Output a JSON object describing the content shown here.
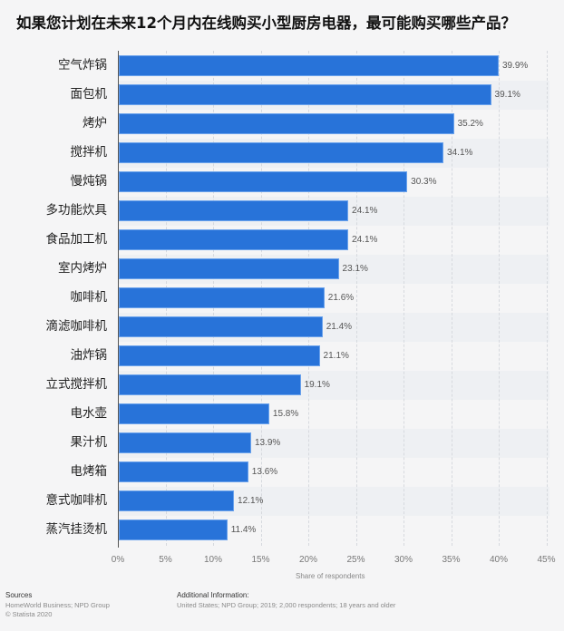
{
  "title": "如果您计划在未来12个月内在线购买小型厨房电器，最可能购买哪些产品？",
  "chart_data": {
    "type": "bar",
    "orientation": "horizontal",
    "title": "如果您计划在未来12个月内在线购买小型厨房电器，最可能购买哪些产品？",
    "xlabel": "Share of respondents",
    "ylabel": "",
    "xlim": [
      0,
      45
    ],
    "x_ticks": [
      "0%",
      "5%",
      "10%",
      "15%",
      "20%",
      "25%",
      "30%",
      "35%",
      "40%",
      "45%"
    ],
    "grid": true,
    "bar_color": "#2873d9",
    "categories": [
      "空气炸锅",
      "面包机",
      "烤炉",
      "搅拌机",
      "慢炖锅",
      "多功能炊具",
      "食品加工机",
      "室内烤炉",
      "咖啡机",
      "滴滤咖啡机",
      "油炸锅",
      "立式搅拌机",
      "电水壶",
      "果汁机",
      "电烤箱",
      "意式咖啡机",
      "蒸汽挂烫机"
    ],
    "values": [
      39.9,
      39.1,
      35.2,
      34.1,
      30.3,
      24.1,
      24.1,
      23.1,
      21.6,
      21.4,
      21.1,
      19.1,
      15.8,
      13.9,
      13.6,
      12.1,
      11.4
    ],
    "value_labels": [
      "39.9%",
      "39.1%",
      "35.2%",
      "34.1%",
      "30.3%",
      "24.1%",
      "24.1%",
      "23.1%",
      "21.6%",
      "21.4%",
      "21.1%",
      "19.1%",
      "15.8%",
      "13.9%",
      "13.6%",
      "12.1%",
      "11.4%"
    ]
  },
  "footer": {
    "sources_heading": "Sources",
    "sources_text": "HomeWorld Business; NPD Group",
    "copyright": "© Statista 2020",
    "additional_heading": "Additional Information:",
    "additional_text": "United States; NPD Group; 2019; 2,000 respondents; 18 years and older"
  }
}
